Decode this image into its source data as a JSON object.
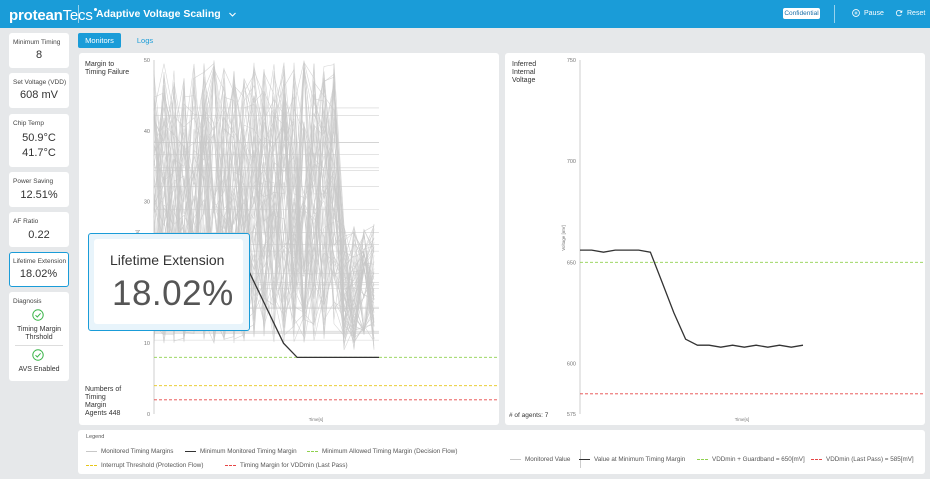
{
  "header": {
    "logo_bold": "protean",
    "logo_thin": "Tecs",
    "title": "Adaptive Voltage Scaling",
    "badge": "Confidential",
    "pause_label": "Pause",
    "reset_label": "Reset"
  },
  "sidebar": {
    "metrics": [
      {
        "label": "Minimum Timing",
        "value": "8"
      },
      {
        "label": "Set Voltage (VDD)",
        "value": "608 mV"
      },
      {
        "label": "Chip Temp",
        "value": "50.9°C",
        "value2": "41.7°C"
      },
      {
        "label": "Power Saving",
        "value": "12.51%"
      },
      {
        "label": "AF Ratio",
        "value": "0.22"
      },
      {
        "label": "Lifetime Extension",
        "value": "18.02%"
      }
    ],
    "diagnosis": {
      "label": "Diagnosis",
      "items": [
        "Timing Margin Thrshold",
        "AVS Enabled"
      ]
    }
  },
  "tabs": [
    "Monitors",
    "Logs"
  ],
  "popup": {
    "title": "Lifetime Extension",
    "value": "18.02%"
  },
  "colors": {
    "accent": "#1a9cd8",
    "green": "#8fd14f",
    "yellow": "#e6c619",
    "red": "#e64646",
    "grey": "#c8c8c8",
    "dark": "#333333"
  },
  "left_chart": {
    "title_lines": [
      "Margin to",
      "Timing Failure"
    ],
    "agents_lines": [
      "Numbers of",
      "Timing",
      "Margin",
      "Agents 448"
    ],
    "y_ticks": [
      "50",
      "40",
      "30",
      "20",
      "10",
      "0"
    ],
    "ylabel": "[buffers]",
    "xlabel": "Time[s]"
  },
  "right_chart": {
    "title_lines": [
      "Inferred",
      "Internal",
      "Voltage"
    ],
    "agents": "# of agents: 7",
    "y_ticks": [
      "750",
      "700",
      "650",
      "600",
      "575"
    ],
    "ylabel": "Voltage [mV]",
    "xlabel": "Time[s]"
  },
  "chart_data": [
    {
      "type": "line",
      "title": "",
      "xlabel": "Time[s]",
      "ylabel": "[buffers]",
      "ylim": [
        0,
        50
      ],
      "grid": false,
      "series": [
        {
          "name": "Minimum Monitored Timing Margin",
          "values": [
            24,
            22,
            18,
            14,
            10,
            8,
            8,
            8,
            8,
            8,
            8,
            8
          ]
        },
        {
          "name": "Minimum Allowed Timing Margin (Decision Flow)",
          "values": [
            8,
            8
          ]
        },
        {
          "name": "Interrupt Threshold (Protection Flow)",
          "values": [
            4,
            4
          ]
        },
        {
          "name": "Timing Margin for VDDmin (Last Pass)",
          "values": [
            2,
            2
          ]
        }
      ]
    },
    {
      "type": "line",
      "title": "",
      "xlabel": "Time[s]",
      "ylabel": "Voltage [mV]",
      "ylim": [
        575,
        750
      ],
      "grid": false,
      "series": [
        {
          "name": "Value at Minimum Timing Margin",
          "values": [
            656,
            656,
            655,
            656,
            656,
            656,
            655,
            640,
            625,
            612,
            609,
            609,
            608,
            609,
            608,
            609,
            608,
            609,
            608,
            609
          ]
        },
        {
          "name": "VDDmin + Guardband = 650[mV]",
          "values": [
            650,
            650
          ]
        },
        {
          "name": "VDDmin (Last Pass) = 585[mV]",
          "values": [
            585,
            585
          ]
        }
      ]
    }
  ],
  "legend": {
    "title": "Legend",
    "items": [
      {
        "label": "Monitored Timing Margins",
        "color": "#c8c8c8",
        "style": "solid"
      },
      {
        "label": "Minimum Monitored Timing Margin",
        "color": "#333333",
        "style": "solid"
      },
      {
        "label": "Minimum Allowed Timing Margin (Decision Flow)",
        "color": "#8fd14f",
        "style": "dashed"
      },
      {
        "label": "Interrupt Threshold (Protection Flow)",
        "color": "#e6c619",
        "style": "dashed"
      },
      {
        "label": "Timing Margin for VDDmin (Last Pass)",
        "color": "#e64646",
        "style": "dashed"
      },
      {
        "label": "Monitored Value",
        "color": "#c8c8c8",
        "style": "solid"
      },
      {
        "label": "Value at Minimum Timing Margin",
        "color": "#333333",
        "style": "solid"
      },
      {
        "label": "VDDmin + Guardband = 650[mV]",
        "color": "#8fd14f",
        "style": "dashed"
      },
      {
        "label": "VDDmin (Last Pass) = 585[mV]",
        "color": "#e64646",
        "style": "dashed"
      }
    ]
  }
}
